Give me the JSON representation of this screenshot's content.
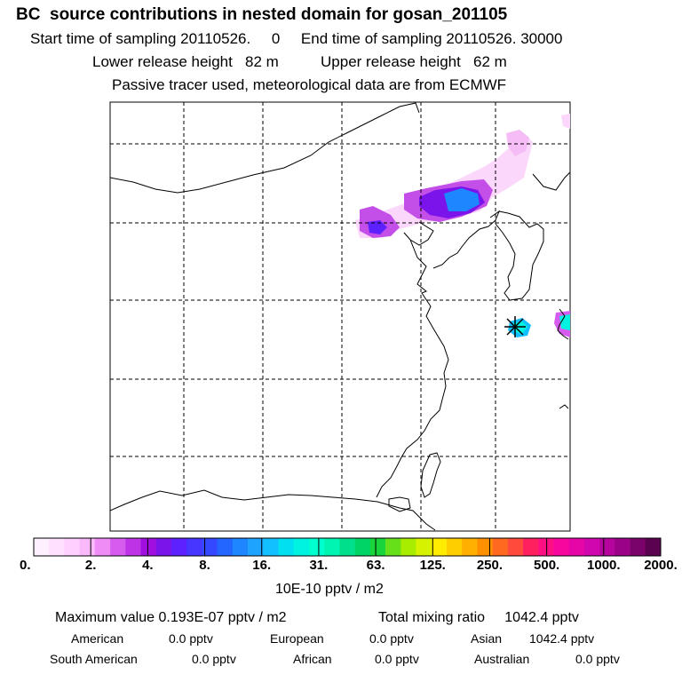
{
  "header": {
    "title": "BC  source contributions in nested domain for gosan_201105",
    "line1": "Start time of sampling 20110526.     0     End time of sampling 20110526. 30000",
    "line2": "Lower release height   82 m          Upper release height   62 m",
    "line3": "Passive tracer used, meteorological data are from ECMWF"
  },
  "colorbar": {
    "ticks": [
      "0.",
      "2.",
      "4.",
      "8.",
      "16.",
      "31.",
      "63.",
      "125.",
      "250.",
      "500.",
      "1000.",
      "2000."
    ],
    "unit": "10E-10 pptv / m2",
    "colors": [
      "#fff0ff",
      "#ffe0ff",
      "#ffd0ff",
      "#fbb8fb",
      "#f08cf5",
      "#d65cf0",
      "#bf33e6",
      "#a10fe0",
      "#7a14ea",
      "#5d20ff",
      "#4636ff",
      "#3449ff",
      "#2266ff",
      "#1e86ff",
      "#1ea3ff",
      "#12bfff",
      "#00e0f0",
      "#00f2e0",
      "#00ffcf",
      "#00f4b2",
      "#00e08c",
      "#00d466",
      "#19d43a",
      "#66e019",
      "#a8ec00",
      "#d7f200",
      "#ffec00",
      "#ffce00",
      "#ffb000",
      "#ff9000",
      "#ff6a20",
      "#ff4a3c",
      "#ff2060",
      "#ff0f84",
      "#f7079d",
      "#e606a8",
      "#d006ae",
      "#b6049f",
      "#9a0388",
      "#7a026b",
      "#5a0150"
    ]
  },
  "stats": {
    "maximum": "Maximum value  0.193E-07 pptv / m2",
    "total": "Total mixing ratio     1042.4 pptv",
    "american": "American",
    "american_value": "0.0 pptv",
    "european": "European",
    "european_value": "0.0 pptv",
    "asian": "Asian",
    "asian_value": "1042.4 pptv",
    "south_american": "South American",
    "south_american_value": "0.0 pptv",
    "african": "African",
    "african_value": "0.0 pptv",
    "australian": "Australian",
    "australian_value": "0.0 pptv"
  }
}
